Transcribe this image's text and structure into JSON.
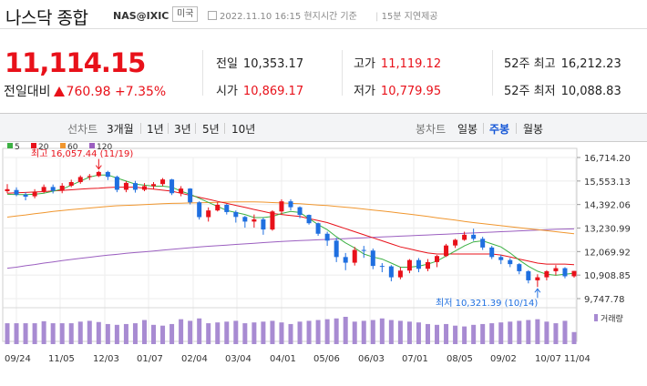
{
  "header": {
    "title": "나스닥 종합",
    "code": "NAS@IXIC",
    "market": "미국",
    "datetime": "2022.11.10 16:15 현지시간 기준",
    "delay": "15분 지연제공"
  },
  "quote": {
    "price": "11,114.15",
    "change_label": "전일대비",
    "change": "760.98",
    "change_pct": "+7.35%",
    "colors": {
      "up": "#e8111a",
      "down": "#1355d6"
    }
  },
  "stats": [
    {
      "label": "전일",
      "value": "10,353.17",
      "color": "neutral"
    },
    {
      "label": "고가",
      "value": "11,119.12",
      "color": "up"
    },
    {
      "label": "52주 최고",
      "value": "16,212.23",
      "color": "neutral"
    },
    {
      "label": "시가",
      "value": "10,869.17",
      "color": "up"
    },
    {
      "label": "저가",
      "value": "10,779.95",
      "color": "up"
    },
    {
      "label": "52주 최저",
      "value": "10,088.83",
      "color": "neutral"
    }
  ],
  "toolbar": {
    "line_label": "선차트",
    "line_ranges": [
      "3개월",
      "1년",
      "3년",
      "5년",
      "10년"
    ],
    "candle_label": "봉차트",
    "candle_options": [
      "일봉",
      "주봉",
      "월봉"
    ],
    "selected": "주봉"
  },
  "chart_data": {
    "type": "candlestick",
    "interval": "weekly",
    "legend": [
      {
        "name": "5",
        "color": "#3cb043"
      },
      {
        "name": "20",
        "color": "#e8111a"
      },
      {
        "name": "60",
        "color": "#f0962e"
      },
      {
        "name": "120",
        "color": "#9b5fc0"
      }
    ],
    "y_ticks": [
      "16,714.20",
      "15,553.13",
      "14,392.06",
      "13,230.99",
      "12,069.92",
      "10,908.85",
      "9,747.78"
    ],
    "ylim": [
      9747.78,
      16714.2
    ],
    "x_ticks": [
      "09/24",
      "11/05",
      "12/03",
      "01/07",
      "02/04",
      "03/04",
      "04/01",
      "05/06",
      "06/03",
      "07/01",
      "08/05",
      "09/02",
      "10/07",
      "11/04"
    ],
    "high_annotation": "최고 16,057.44 (11/19)",
    "low_annotation": "최저 10,321.39 (10/14)",
    "volume_label": "거래량",
    "candles": [
      [
        15050,
        15150,
        15400,
        14950
      ],
      [
        15110,
        14880,
        15240,
        14800
      ],
      [
        14880,
        14780,
        15000,
        14600
      ],
      [
        14800,
        15030,
        15150,
        14700
      ],
      [
        15040,
        15260,
        15380,
        14960
      ],
      [
        15260,
        15070,
        15380,
        14940
      ],
      [
        15070,
        15320,
        15450,
        14950
      ],
      [
        15320,
        15500,
        15620,
        15250
      ],
      [
        15500,
        15750,
        15830,
        15420
      ],
      [
        15750,
        15800,
        15900,
        15600
      ],
      [
        15800,
        16000,
        16057,
        15750
      ],
      [
        16000,
        15760,
        16057,
        15600
      ],
      [
        15760,
        15120,
        15820,
        15000
      ],
      [
        15120,
        15460,
        15550,
        15000
      ],
      [
        15450,
        15120,
        15560,
        14980
      ],
      [
        15120,
        15300,
        15450,
        15050
      ],
      [
        15300,
        15400,
        15500,
        15150
      ],
      [
        15400,
        15630,
        15700,
        15300
      ],
      [
        15630,
        14950,
        15660,
        14860
      ],
      [
        14950,
        15180,
        15300,
        14800
      ],
      [
        15180,
        14500,
        15200,
        14400
      ],
      [
        14500,
        13770,
        14550,
        13650
      ],
      [
        13770,
        14100,
        14250,
        13550
      ],
      [
        14100,
        14380,
        14500,
        14050
      ],
      [
        14380,
        14020,
        14420,
        13900
      ],
      [
        14020,
        13780,
        14100,
        13500
      ],
      [
        13780,
        13550,
        13830,
        13250
      ],
      [
        13550,
        13660,
        13900,
        13250
      ],
      [
        13660,
        13160,
        13750,
        12900
      ],
      [
        13160,
        14050,
        14110,
        13100
      ],
      [
        14050,
        14550,
        14650,
        13900
      ],
      [
        14550,
        14260,
        14650,
        14100
      ],
      [
        14260,
        13880,
        14300,
        13720
      ],
      [
        13880,
        13470,
        13900,
        13400
      ],
      [
        13470,
        12950,
        13500,
        12850
      ],
      [
        12950,
        12610,
        13050,
        12350
      ],
      [
        12610,
        11800,
        12750,
        11550
      ],
      [
        11800,
        11520,
        12000,
        11150
      ],
      [
        11520,
        12150,
        12300,
        11380
      ],
      [
        12150,
        12120,
        12350,
        11760
      ],
      [
        12120,
        11360,
        12220,
        11200
      ],
      [
        11360,
        11340,
        11500,
        11050
      ],
      [
        11340,
        10800,
        11400,
        10600
      ],
      [
        10800,
        11130,
        11300,
        10700
      ],
      [
        11130,
        11650,
        11700,
        11000
      ],
      [
        11650,
        11220,
        11750,
        11050
      ],
      [
        11220,
        11550,
        11700,
        11100
      ],
      [
        11550,
        11850,
        11900,
        11300
      ],
      [
        11850,
        12370,
        12450,
        11800
      ],
      [
        12370,
        12650,
        12700,
        12250
      ],
      [
        12650,
        12900,
        13050,
        12600
      ],
      [
        12900,
        12700,
        13200,
        12600
      ],
      [
        12700,
        12270,
        12800,
        12150
      ],
      [
        12270,
        11800,
        12350,
        11700
      ],
      [
        11800,
        11650,
        11900,
        11450
      ],
      [
        11650,
        11450,
        11750,
        11300
      ],
      [
        11450,
        11100,
        11500,
        10950
      ],
      [
        11100,
        10650,
        11150,
        10500
      ],
      [
        10650,
        10800,
        10950,
        10321
      ],
      [
        10800,
        11100,
        11150,
        10650
      ],
      [
        11100,
        11250,
        11400,
        10900
      ],
      [
        11250,
        10850,
        11300,
        10750
      ],
      [
        10850,
        11114,
        11119,
        10780
      ]
    ],
    "volume": [
      52,
      52,
      52,
      52,
      57,
      52,
      52,
      52,
      56,
      58,
      55,
      50,
      48,
      50,
      52,
      60,
      48,
      46,
      50,
      62,
      58,
      64,
      52,
      54,
      56,
      58,
      52,
      54,
      56,
      58,
      54,
      50,
      56,
      58,
      60,
      62,
      64,
      68,
      56,
      58,
      60,
      64,
      60,
      58,
      56,
      54,
      50,
      48,
      50,
      46,
      44,
      48,
      50,
      52,
      54,
      56,
      58,
      60,
      62,
      56,
      52,
      58,
      30
    ],
    "ma5": [
      14900,
      14880,
      14880,
      14900,
      14950,
      15050,
      15150,
      15350,
      15550,
      15750,
      15850,
      15850,
      15700,
      15550,
      15400,
      15350,
      15300,
      15300,
      15250,
      15050,
      14900,
      14700,
      14500,
      14300,
      14100,
      14000,
      13900,
      13750,
      13750,
      13800,
      13950,
      14050,
      14000,
      13700,
      13400,
      13150,
      12800,
      12500,
      12250,
      11950,
      11800,
      11700,
      11500,
      11300,
      11300,
      11350,
      11450,
      11600,
      11850,
      12100,
      12350,
      12550,
      12600,
      12450,
      12300,
      12000,
      11650,
      11350,
      11100,
      10950,
      10900,
      10950,
      11000
    ],
    "ma20": [
      14950,
      14970,
      14990,
      15010,
      15030,
      15060,
      15090,
      15120,
      15150,
      15180,
      15200,
      15230,
      15250,
      15250,
      15250,
      15200,
      15150,
      15100,
      15050,
      14950,
      14850,
      14750,
      14650,
      14550,
      14450,
      14350,
      14250,
      14150,
      14050,
      13950,
      13900,
      13850,
      13800,
      13700,
      13600,
      13500,
      13350,
      13200,
      13050,
      12900,
      12750,
      12600,
      12450,
      12300,
      12200,
      12100,
      12000,
      11950,
      11950,
      11950,
      11950,
      11950,
      11950,
      11950,
      11900,
      11800,
      11700,
      11600,
      11500,
      11450,
      11450,
      11450,
      11420
    ],
    "ma60": [
      13770,
      13830,
      13880,
      13940,
      13990,
      14050,
      14100,
      14140,
      14180,
      14220,
      14260,
      14300,
      14330,
      14350,
      14370,
      14390,
      14410,
      14430,
      14450,
      14460,
      14470,
      14480,
      14490,
      14500,
      14510,
      14520,
      14520,
      14520,
      14510,
      14490,
      14470,
      14450,
      14430,
      14400,
      14370,
      14340,
      14300,
      14260,
      14220,
      14170,
      14120,
      14070,
      14020,
      13970,
      13920,
      13860,
      13800,
      13740,
      13680,
      13620,
      13560,
      13500,
      13450,
      13400,
      13350,
      13300,
      13250,
      13200,
      13150,
      13100,
      13050,
      13000,
      12950
    ],
    "ma120": [
      11250,
      11300,
      11370,
      11430,
      11500,
      11560,
      11620,
      11680,
      11740,
      11790,
      11840,
      11890,
      11930,
      11980,
      12020,
      12060,
      12100,
      12140,
      12180,
      12220,
      12260,
      12300,
      12330,
      12360,
      12390,
      12420,
      12450,
      12480,
      12510,
      12540,
      12570,
      12590,
      12610,
      12630,
      12650,
      12670,
      12690,
      12710,
      12730,
      12750,
      12770,
      12790,
      12810,
      12830,
      12850,
      12870,
      12890,
      12910,
      12930,
      12950,
      12970,
      12990,
      13010,
      13030,
      13050,
      13070,
      13090,
      13110,
      13130,
      13150,
      13170,
      13180,
      13190
    ]
  }
}
